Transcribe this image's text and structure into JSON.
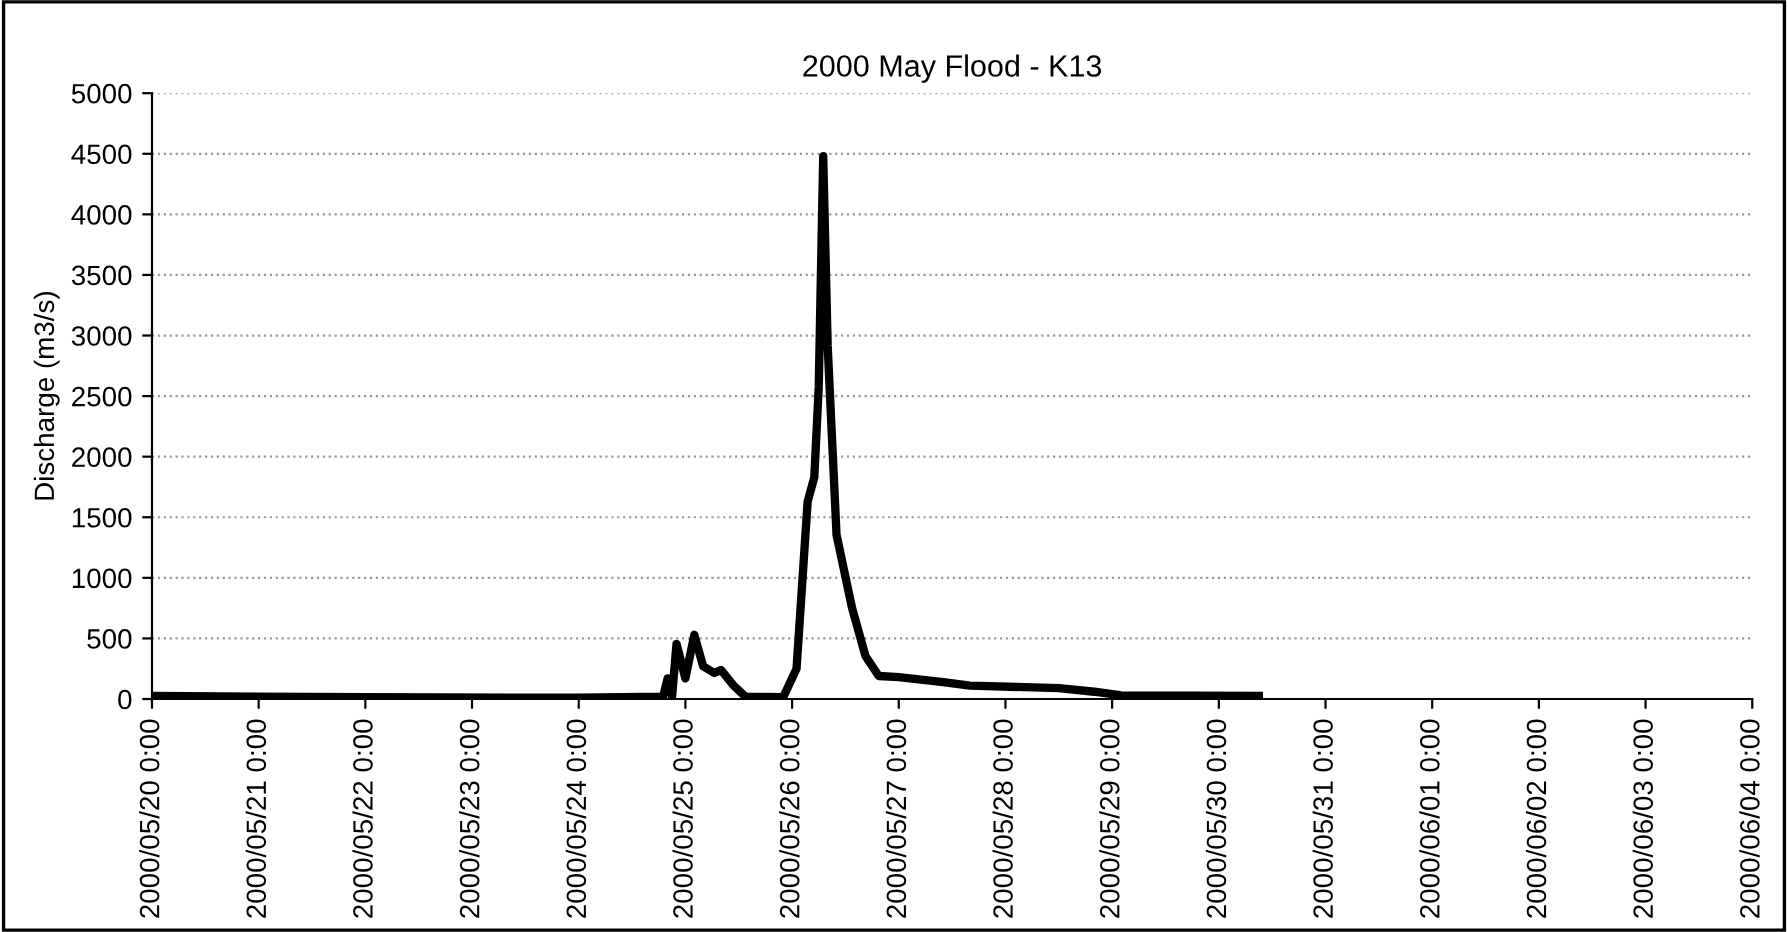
{
  "chart_data": {
    "type": "line",
    "title": "2000 May Flood - K13",
    "ylabel": "Discharge (m3/s)",
    "x": [
      "2000-05-20T00:00",
      "2000-05-22T00:00",
      "2000-05-24T00:00",
      "2000-05-24T19:00",
      "2000-05-24T20:00",
      "2000-05-24T21:00",
      "2000-05-24T22:00",
      "2000-05-25T00:00",
      "2000-05-25T02:00",
      "2000-05-25T04:00",
      "2000-05-25T06:30",
      "2000-05-25T08:00",
      "2000-05-25T11:00",
      "2000-05-25T13:30",
      "2000-05-25T22:00",
      "2000-05-26T01:00",
      "2000-05-26T03:30",
      "2000-05-26T05:00",
      "2000-05-26T06:00",
      "2000-05-26T07:00",
      "2000-05-26T08:00",
      "2000-05-26T10:00",
      "2000-05-26T13:30",
      "2000-05-26T16:30",
      "2000-05-26T19:30",
      "2000-05-27T00:00",
      "2000-05-27T10:00",
      "2000-05-27T16:00",
      "2000-05-28T12:00",
      "2000-05-28T20:00",
      "2000-05-29T02:00",
      "2000-05-30T09:00"
    ],
    "series": [
      {
        "color": "#000000",
        "values": [
          25,
          15,
          10,
          20,
          170,
          20,
          455,
          170,
          530,
          270,
          215,
          240,
          105,
          20,
          15,
          250,
          1630,
          1830,
          2580,
          4480,
          2920,
          1355,
          750,
          355,
          190,
          180,
          140,
          110,
          90,
          60,
          30,
          25
        ]
      }
    ],
    "ylim": [
      0,
      5000
    ],
    "yticks": [
      0,
      500,
      1000,
      1500,
      2000,
      2500,
      3000,
      3500,
      4000,
      4500,
      5000
    ],
    "xlim": [
      "2000-05-20",
      "2000-06-04"
    ],
    "xticks": [
      {
        "value": "2000-05-20",
        "label": "2000/05/20 0:00"
      },
      {
        "value": "2000-05-21",
        "label": "2000/05/21 0:00"
      },
      {
        "value": "2000-05-22",
        "label": "2000/05/22 0:00"
      },
      {
        "value": "2000-05-23",
        "label": "2000/05/23 0:00"
      },
      {
        "value": "2000-05-24",
        "label": "2000/05/24 0:00"
      },
      {
        "value": "2000-05-25",
        "label": "2000/05/25 0:00"
      },
      {
        "value": "2000-05-26",
        "label": "2000/05/26 0:00"
      },
      {
        "value": "2000-05-27",
        "label": "2000/05/27 0:00"
      },
      {
        "value": "2000-05-28",
        "label": "2000/05/28 0:00"
      },
      {
        "value": "2000-05-29",
        "label": "2000/05/29 0:00"
      },
      {
        "value": "2000-05-30",
        "label": "2000/05/30 0:00"
      },
      {
        "value": "2000-05-31",
        "label": "2000/05/31 0:00"
      },
      {
        "value": "2000-06-01",
        "label": "2000/06/01 0:00"
      },
      {
        "value": "2000-06-02",
        "label": "2000/06/02 0:00"
      },
      {
        "value": "2000-06-03",
        "label": "2000/06/03 0:00"
      },
      {
        "value": "2000-06-04",
        "label": "2000/06/04 0:00"
      }
    ],
    "grid": "y",
    "marker": "none",
    "line_style": "solid"
  }
}
